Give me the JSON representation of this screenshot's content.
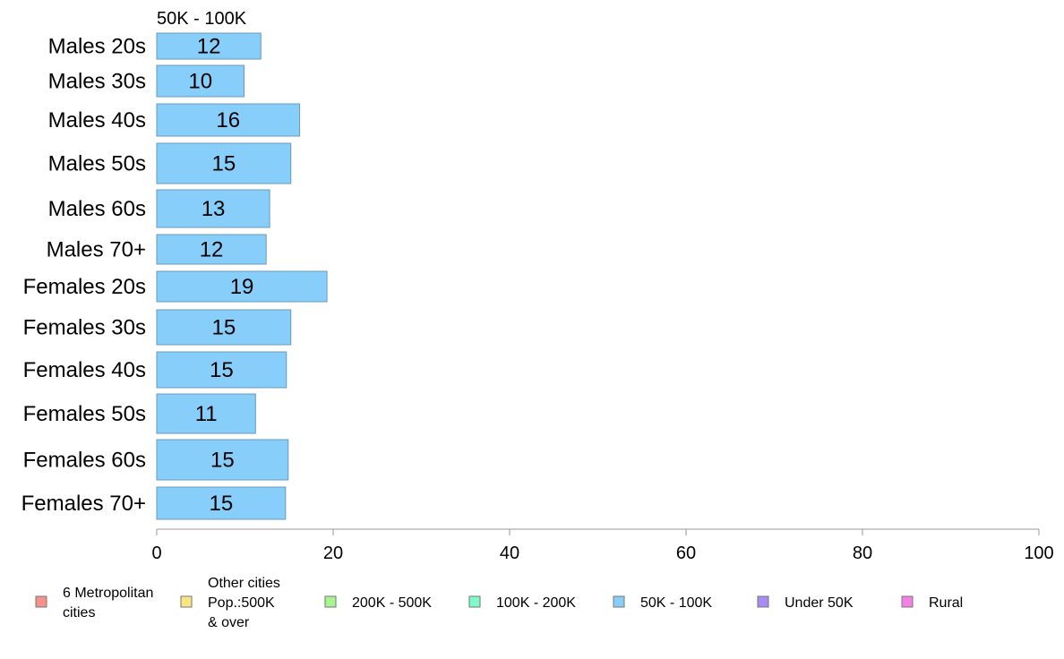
{
  "chart_data": {
    "type": "bar",
    "orientation": "horizontal",
    "series_title": "50K - 100K",
    "categories": [
      "Males 20s",
      "Males 30s",
      "Males 40s",
      "Males 50s",
      "Males 60s",
      "Males 70+",
      "Females 20s",
      "Females 30s",
      "Females 40s",
      "Females 50s",
      "Females 60s",
      "Females 70+"
    ],
    "series": [
      {
        "name": "50K - 100K",
        "color": "#87CEFA",
        "values": [
          11.8,
          9.9,
          16.2,
          15.2,
          12.8,
          12.4,
          19.3,
          15.2,
          14.7,
          11.2,
          14.9,
          14.6
        ]
      }
    ],
    "data_labels": [
      "12",
      "10",
      "16",
      "15",
      "13",
      "12",
      "19",
      "15",
      "15",
      "11",
      "15",
      "15"
    ],
    "xlim": [
      0,
      100
    ],
    "xticks": [
      "0",
      "20",
      "40",
      "60",
      "80",
      "100"
    ],
    "grid": false,
    "legend_position": "bottom",
    "legend": [
      {
        "lines": [
          "6 Metropolitan",
          " cities"
        ],
        "color": "#F4938B"
      },
      {
        "lines": [
          "Other cities",
          "Pop.:500K",
          " & over"
        ],
        "color": "#FCE583"
      },
      {
        "lines": [
          "200K - 500K"
        ],
        "color": "#A7F58E"
      },
      {
        "lines": [
          "100K - 200K"
        ],
        "color": "#7FFAC9"
      },
      {
        "lines": [
          "50K - 100K"
        ],
        "color": "#87CEFA"
      },
      {
        "lines": [
          "Under 50K"
        ],
        "color": "#A98BF2"
      },
      {
        "lines": [
          "Rural"
        ],
        "color": "#F67EE8"
      }
    ]
  }
}
